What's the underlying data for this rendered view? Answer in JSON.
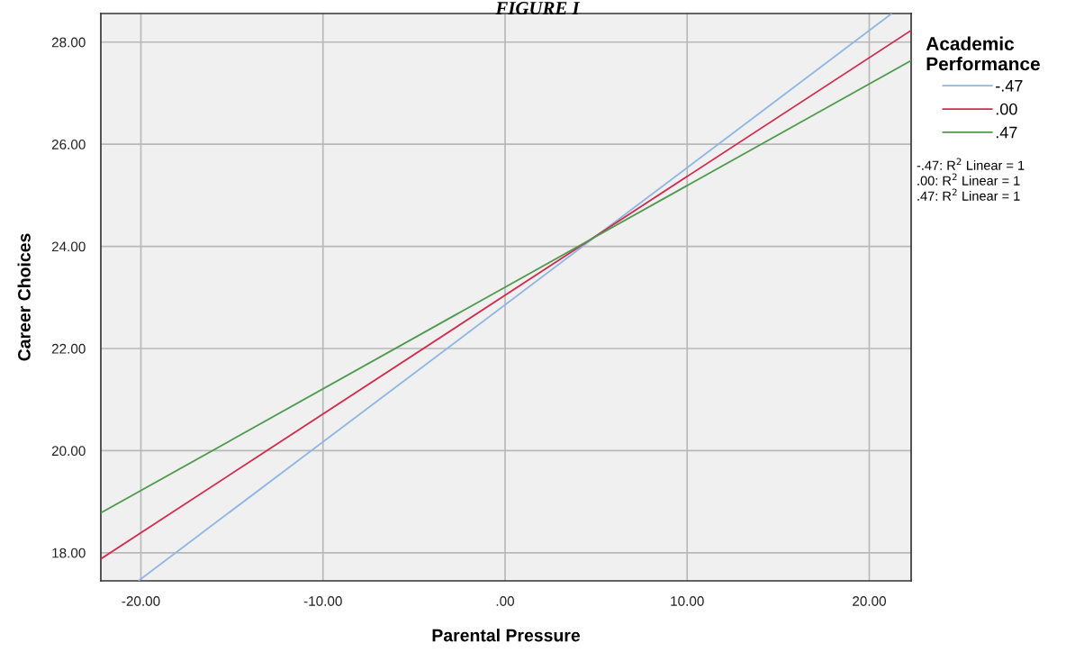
{
  "chart_data": {
    "type": "line",
    "title": "FIGURE I",
    "xlabel": "Parental Pressure",
    "ylabel": "Career Choices",
    "legend_title": "Academic Performance",
    "series": [
      {
        "name": "-.47",
        "color": "#8db6e2",
        "x": [
          -20.1,
          21.2
        ],
        "values": [
          17.46,
          28.55
        ]
      },
      {
        "name": ".00",
        "color": "#d42a4e",
        "x": [
          -22.2,
          22.3
        ],
        "values": [
          17.88,
          28.23
        ]
      },
      {
        "name": ".47",
        "color": "#4d9a4d",
        "x": [
          -22.2,
          22.3
        ],
        "values": [
          18.78,
          27.64
        ]
      }
    ],
    "xlim": [
      -22.2,
      22.3
    ],
    "ylim": [
      17.45,
      28.56
    ],
    "xticks": [
      {
        "value": -20,
        "label": "-20.00"
      },
      {
        "value": -10,
        "label": "-10.00"
      },
      {
        "value": 0,
        "label": ".00"
      },
      {
        "value": 10,
        "label": "10.00"
      },
      {
        "value": 20,
        "label": "20.00"
      }
    ],
    "yticks": [
      {
        "value": 18,
        "label": "18.00"
      },
      {
        "value": 20,
        "label": "20.00"
      },
      {
        "value": 22,
        "label": "22.00"
      },
      {
        "value": 24,
        "label": "24.00"
      },
      {
        "value": 26,
        "label": "26.00"
      },
      {
        "value": 28,
        "label": "28.00"
      }
    ],
    "annotations": [
      "-.47: R$^{2}$ Linear = 1",
      ".00: R$^{2}$ Linear = 1",
      ".47: R$^{2}$ Linear = 1"
    ],
    "grid": true,
    "legend": "right",
    "marker": "none",
    "line_style": "solid"
  }
}
